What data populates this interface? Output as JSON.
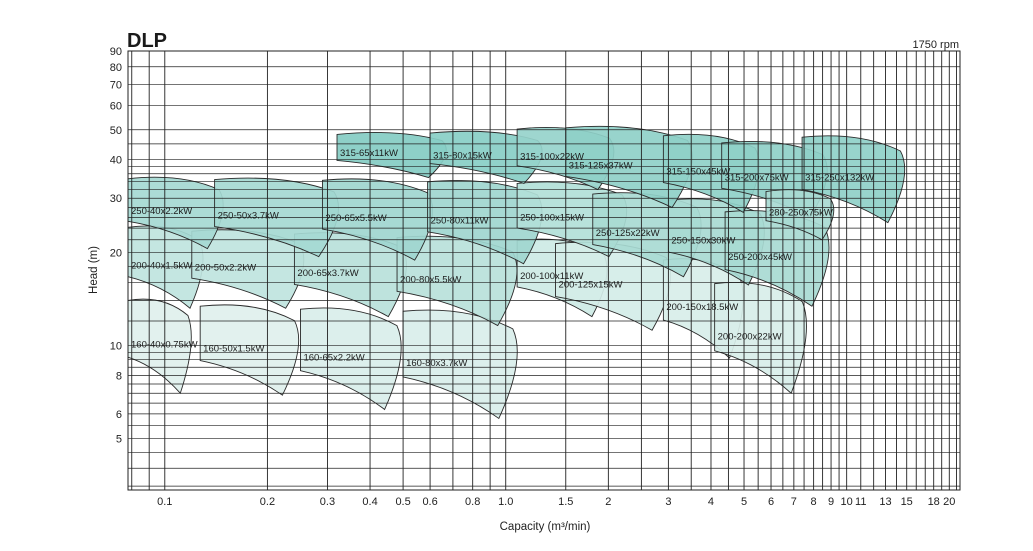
{
  "chart_data": {
    "type": "area",
    "title": "DLP",
    "subtitle": "1750 rpm",
    "xlabel": "Capacity (m³/min)",
    "ylabel": "Head (m)",
    "x_scale": "log",
    "y_scale": "log",
    "xlim": [
      0.078,
      21.5
    ],
    "ylim": [
      3.4,
      90
    ],
    "x_ticks": [
      "0.1",
      "0.2",
      "0.3",
      "0.4",
      "0.5",
      "0.6",
      "0.8",
      "1.0",
      "1.5",
      "2",
      "3",
      "4",
      "5",
      "6",
      "7",
      "8",
      "9",
      "10",
      "11",
      "13",
      "15",
      "18",
      "20"
    ],
    "y_ticks": [
      "5",
      "6",
      "8",
      "10",
      "20",
      "30",
      "40",
      "50",
      "60",
      "70",
      "80",
      "90"
    ],
    "grid": true,
    "regions": [
      {
        "name": "160-40x0.75kW",
        "q_min": 0.078,
        "q_max": 0.12,
        "h_min": 7.0,
        "h_max": 14.2,
        "fill": "#dff0ed"
      },
      {
        "name": "160-50x1.5kW",
        "q_min": 0.127,
        "q_max": 0.25,
        "h_min": 6.9,
        "h_max": 13.6,
        "fill": "#dff0ed"
      },
      {
        "name": "160-65x2.2kW",
        "q_min": 0.25,
        "q_max": 0.5,
        "h_min": 6.2,
        "h_max": 13.3,
        "fill": "#d9eeea"
      },
      {
        "name": "160-80x3.7kW",
        "q_min": 0.5,
        "q_max": 1.1,
        "h_min": 5.8,
        "h_max": 13.1,
        "fill": "#d9eeea"
      },
      {
        "name": "200-40x1.5kW",
        "q_min": 0.078,
        "q_max": 0.13,
        "h_min": 13.2,
        "h_max": 24.5,
        "fill": "#bfe4de"
      },
      {
        "name": "200-50x2.2kW",
        "q_min": 0.12,
        "q_max": 0.26,
        "h_min": 13.2,
        "h_max": 23.8,
        "fill": "#bfe4de"
      },
      {
        "name": "200-65x3.7kW",
        "q_min": 0.24,
        "q_max": 0.52,
        "h_min": 12.4,
        "h_max": 23.3,
        "fill": "#b8e1da"
      },
      {
        "name": "200-80x5.5kW",
        "q_min": 0.48,
        "q_max": 1.1,
        "h_min": 11.6,
        "h_max": 22.7,
        "fill": "#b8e1da"
      },
      {
        "name": "200-100x11kW",
        "q_min": 1.08,
        "q_max": 2.0,
        "h_min": 12.4,
        "h_max": 22.2,
        "fill": "#cdeae5"
      },
      {
        "name": "200-125x15kW",
        "q_min": 1.4,
        "q_max": 3.1,
        "h_min": 11.2,
        "h_max": 21.7,
        "fill": "#d4ede8"
      },
      {
        "name": "200-150x18.5kW",
        "q_min": 2.9,
        "q_max": 5.0,
        "h_min": 9.1,
        "h_max": 19.2,
        "fill": "#d8eee9"
      },
      {
        "name": "200-200x22kW",
        "q_min": 4.1,
        "q_max": 7.7,
        "h_min": 7.0,
        "h_max": 16.1,
        "fill": "#d8eee9"
      },
      {
        "name": "250-40x2.2kW",
        "q_min": 0.078,
        "q_max": 0.15,
        "h_min": 20.6,
        "h_max": 35.2,
        "fill": "#a5d9d2"
      },
      {
        "name": "250-50x3.7kW",
        "q_min": 0.14,
        "q_max": 0.33,
        "h_min": 19.4,
        "h_max": 35.0,
        "fill": "#a5d9d2"
      },
      {
        "name": "250-65x5.5kW",
        "q_min": 0.29,
        "q_max": 0.62,
        "h_min": 18.9,
        "h_max": 34.8,
        "fill": "#9fd6cf"
      },
      {
        "name": "250-80x11kW",
        "q_min": 0.59,
        "q_max": 1.3,
        "h_min": 18.4,
        "h_max": 34.4,
        "fill": "#9fd6cf"
      },
      {
        "name": "250-100x15kW",
        "q_min": 1.08,
        "q_max": 2.3,
        "h_min": 19.4,
        "h_max": 34.0,
        "fill": "#b2dfd8"
      },
      {
        "name": "250-125x22kW",
        "q_min": 1.8,
        "q_max": 3.8,
        "h_min": 16.7,
        "h_max": 31.4,
        "fill": "#a8dad3"
      },
      {
        "name": "250-150x30kW",
        "q_min": 3.0,
        "q_max": 5.8,
        "h_min": 15.7,
        "h_max": 30.0,
        "fill": "#a8dad3"
      },
      {
        "name": "250-200x45kW",
        "q_min": 4.4,
        "q_max": 9.0,
        "h_min": 13.4,
        "h_max": 27.5,
        "fill": "#a8dad3"
      },
      {
        "name": "315-65x11kW",
        "q_min": 0.32,
        "q_max": 0.68,
        "h_min": 35.0,
        "h_max": 49.0,
        "fill": "#84ccc3"
      },
      {
        "name": "315-80x15kW",
        "q_min": 0.6,
        "q_max": 1.3,
        "h_min": 33.5,
        "h_max": 49.5,
        "fill": "#88cec5"
      },
      {
        "name": "315-100x22kW",
        "q_min": 1.08,
        "q_max": 2.1,
        "h_min": 32.0,
        "h_max": 51.0,
        "fill": "#96d3cb"
      },
      {
        "name": "315-125x37kW",
        "q_min": 1.5,
        "q_max": 3.6,
        "h_min": 28.0,
        "h_max": 51.5,
        "fill": "#8fd0c8"
      },
      {
        "name": "315-150x45kW",
        "q_min": 2.9,
        "q_max": 5.6,
        "h_min": 27.0,
        "h_max": 48.5,
        "fill": "#8fd0c8"
      },
      {
        "name": "315-200x75kW",
        "q_min": 4.3,
        "q_max": 8.9,
        "h_min": 26.0,
        "h_max": 46.0,
        "fill": "#8fd0c8"
      },
      {
        "name": "315-250x132kW",
        "q_min": 7.4,
        "q_max": 15.0,
        "h_min": 25.0,
        "h_max": 48.0,
        "fill": "#8fd0c8"
      },
      {
        "name": "280-250x75kW",
        "q_min": 5.8,
        "q_max": 9.2,
        "h_min": 22.0,
        "h_max": 32.0,
        "fill": "#a8dad3"
      }
    ]
  }
}
